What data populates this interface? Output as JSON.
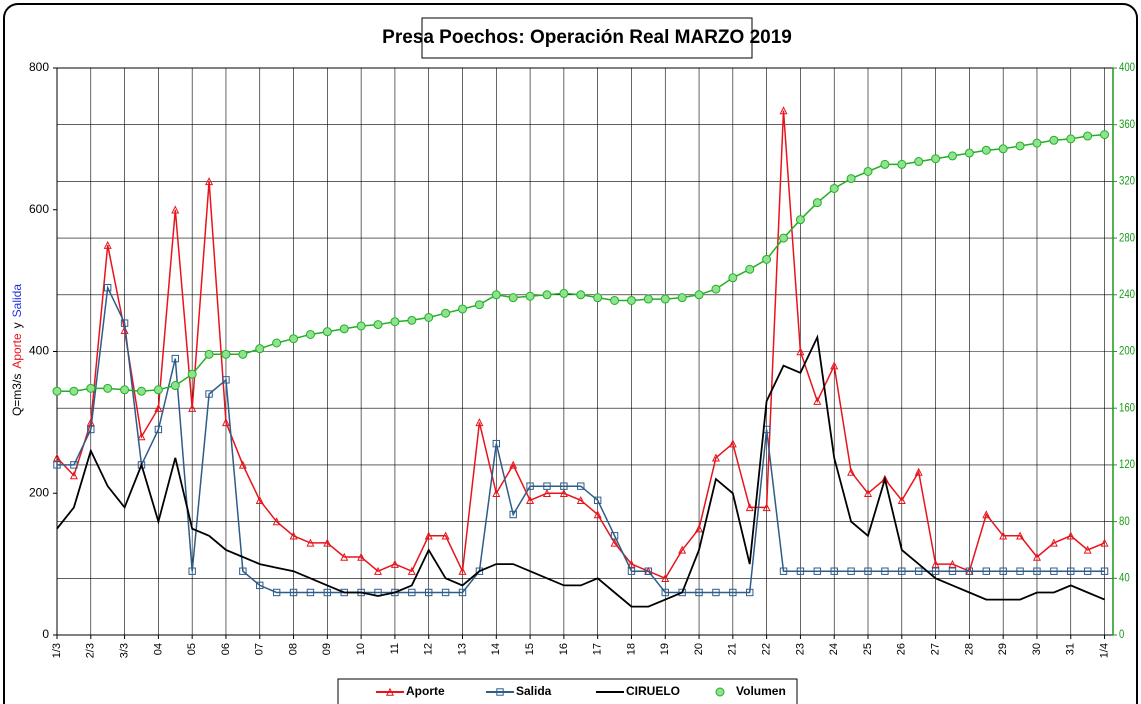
{
  "chart_data": {
    "type": "line",
    "title": "Presa Poechos: Operación Real MARZO 2019",
    "ylabel_parts": [
      {
        "text": "Q=m3/s",
        "color": "#000000"
      },
      {
        "text": "Aporte",
        "color": "#e8141c"
      },
      {
        "text": "y",
        "color": "#000000"
      },
      {
        "text": "Salida",
        "color": "#2233dd"
      }
    ],
    "grid": true,
    "legend": "bottom",
    "xlim": [
      0,
      31.25
    ],
    "xticks": [
      {
        "value": 0,
        "label": "1/3"
      },
      {
        "value": 1,
        "label": "2/3"
      },
      {
        "value": 2,
        "label": "3/3"
      },
      {
        "value": 3,
        "label": "04"
      },
      {
        "value": 4,
        "label": "05"
      },
      {
        "value": 5,
        "label": "06"
      },
      {
        "value": 6,
        "label": "07"
      },
      {
        "value": 7,
        "label": "08"
      },
      {
        "value": 8,
        "label": "09"
      },
      {
        "value": 9,
        "label": "10"
      },
      {
        "value": 10,
        "label": "11"
      },
      {
        "value": 11,
        "label": "12"
      },
      {
        "value": 12,
        "label": "13"
      },
      {
        "value": 13,
        "label": "14"
      },
      {
        "value": 14,
        "label": "15"
      },
      {
        "value": 15,
        "label": "16"
      },
      {
        "value": 16,
        "label": "17"
      },
      {
        "value": 17,
        "label": "18"
      },
      {
        "value": 18,
        "label": "19"
      },
      {
        "value": 19,
        "label": "20"
      },
      {
        "value": 20,
        "label": "21"
      },
      {
        "value": 21,
        "label": "22"
      },
      {
        "value": 22,
        "label": "23"
      },
      {
        "value": 23,
        "label": "24"
      },
      {
        "value": 24,
        "label": "25"
      },
      {
        "value": 25,
        "label": "26"
      },
      {
        "value": 26,
        "label": "27"
      },
      {
        "value": 27,
        "label": "28"
      },
      {
        "value": 28,
        "label": "29"
      },
      {
        "value": 29,
        "label": "30"
      },
      {
        "value": 30,
        "label": "31"
      },
      {
        "value": 31,
        "label": "1/4"
      }
    ],
    "ylim": [
      0,
      800
    ],
    "yticks": [
      0,
      200,
      400,
      600,
      800
    ],
    "y2lim": [
      0,
      400
    ],
    "y2ticks": [
      0,
      40,
      80,
      120,
      160,
      200,
      240,
      280,
      320,
      360,
      400
    ],
    "y2color": "#1a9a1a",
    "x": [
      0,
      0.5,
      1,
      1.5,
      2,
      2.5,
      3,
      3.5,
      4,
      4.5,
      5,
      5.5,
      6,
      6.5,
      7,
      7.5,
      8,
      8.5,
      9,
      9.5,
      10,
      10.5,
      11,
      11.5,
      12,
      12.5,
      13,
      13.5,
      14,
      14.5,
      15,
      15.5,
      16,
      16.5,
      17,
      17.5,
      18,
      18.5,
      19,
      19.5,
      20,
      20.5,
      21,
      21.5,
      22,
      22.5,
      23,
      23.5,
      24,
      24.5,
      25,
      25.5,
      26,
      26.5,
      27,
      27.5,
      28,
      28.5,
      29,
      29.5,
      30,
      30.5,
      31
    ],
    "series": [
      {
        "name": "Aporte",
        "color": "#e8141c",
        "marker": "triangle",
        "axis": "y",
        "values": [
          250,
          225,
          300,
          550,
          430,
          280,
          320,
          600,
          320,
          640,
          300,
          240,
          190,
          160,
          140,
          130,
          130,
          110,
          110,
          90,
          100,
          90,
          140,
          140,
          90,
          300,
          200,
          240,
          190,
          200,
          200,
          190,
          170,
          130,
          100,
          90,
          80,
          120,
          150,
          250,
          270,
          180,
          180,
          740,
          400,
          330,
          380,
          230,
          200,
          220,
          190,
          230,
          100,
          100,
          90,
          170,
          140,
          140,
          110,
          130,
          140,
          120,
          130
        ]
      },
      {
        "name": "Salida",
        "color": "#2e5c8a",
        "marker": "square",
        "axis": "y",
        "values": [
          240,
          240,
          290,
          490,
          440,
          240,
          290,
          390,
          90,
          340,
          360,
          90,
          70,
          60,
          60,
          60,
          60,
          60,
          60,
          60,
          60,
          60,
          60,
          60,
          60,
          90,
          270,
          170,
          210,
          210,
          210,
          210,
          190,
          140,
          90,
          90,
          60,
          60,
          60,
          60,
          60,
          60,
          290,
          90,
          90,
          90,
          90,
          90,
          90,
          90,
          90,
          90,
          90,
          90,
          90,
          90,
          90,
          90,
          90,
          90,
          90,
          90,
          90
        ]
      },
      {
        "name": "CIRUELO",
        "color": "#000000",
        "marker": "none",
        "axis": "y",
        "values": [
          150,
          180,
          260,
          210,
          180,
          240,
          160,
          250,
          150,
          140,
          120,
          110,
          100,
          95,
          90,
          80,
          70,
          60,
          60,
          55,
          60,
          70,
          120,
          80,
          70,
          90,
          100,
          100,
          90,
          80,
          70,
          70,
          80,
          60,
          40,
          40,
          50,
          60,
          120,
          220,
          200,
          100,
          330,
          380,
          370,
          420,
          250,
          160,
          140,
          220,
          120,
          100,
          80,
          70,
          60,
          50,
          50,
          50,
          60,
          60,
          70,
          60,
          50
        ]
      },
      {
        "name": "Volumen",
        "color": "#22b022",
        "marker": "circle",
        "axis": "y2",
        "values": [
          172,
          172,
          174,
          174,
          173,
          172,
          173,
          176,
          184,
          198,
          198,
          198,
          202,
          206,
          209,
          212,
          214,
          216,
          218,
          219,
          221,
          222,
          224,
          227,
          230,
          233,
          240,
          238,
          239,
          240,
          241,
          240,
          238,
          236,
          236,
          237,
          237,
          238,
          240,
          244,
          252,
          258,
          265,
          280,
          293,
          305,
          315,
          322,
          327,
          332,
          332,
          334,
          336,
          338,
          340,
          342,
          343,
          345,
          347,
          349,
          350,
          352,
          353
        ]
      }
    ]
  }
}
